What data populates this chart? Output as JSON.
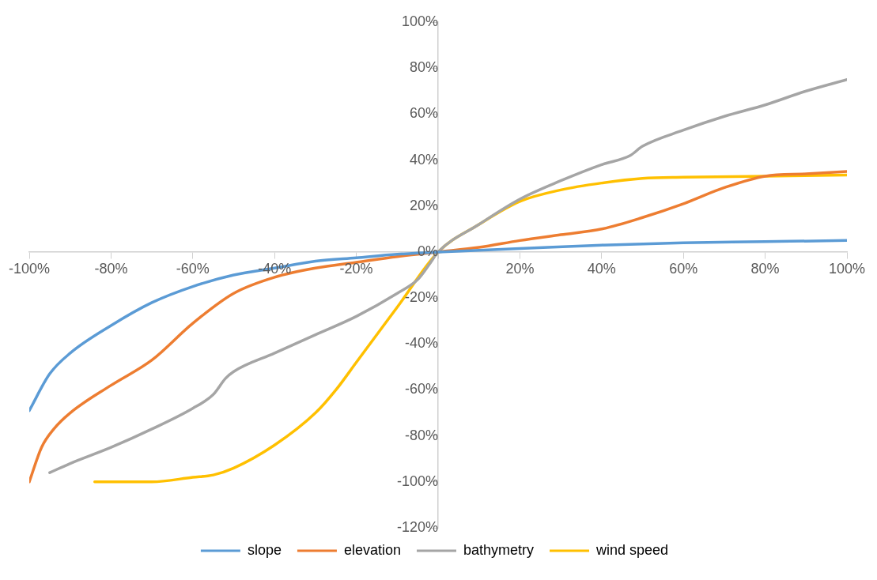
{
  "chart_data": {
    "type": "line",
    "legend": "bottom",
    "marker": "none",
    "xlim": [
      -100,
      100
    ],
    "ylim": [
      -120,
      100
    ],
    "xticks": [
      {
        "value": -100,
        "label": "-100%"
      },
      {
        "value": -80,
        "label": "-80%"
      },
      {
        "value": -60,
        "label": "-60%"
      },
      {
        "value": -40,
        "label": "-40%"
      },
      {
        "value": -20,
        "label": "-20%"
      },
      {
        "value": 0,
        "label": null
      },
      {
        "value": 20,
        "label": "20%"
      },
      {
        "value": 40,
        "label": "40%"
      },
      {
        "value": 60,
        "label": "60%"
      },
      {
        "value": 80,
        "label": "80%"
      },
      {
        "value": 100,
        "label": "100%"
      }
    ],
    "yticks": [
      {
        "value": -120,
        "label": "-120%"
      },
      {
        "value": -100,
        "label": "-100%"
      },
      {
        "value": -80,
        "label": "-80%"
      },
      {
        "value": -60,
        "label": "-60%"
      },
      {
        "value": -40,
        "label": "-40%"
      },
      {
        "value": -20,
        "label": "-20%"
      },
      {
        "value": 0,
        "label": "0%"
      },
      {
        "value": 20,
        "label": "20%"
      },
      {
        "value": 40,
        "label": "40%"
      },
      {
        "value": 60,
        "label": "60%"
      },
      {
        "value": 80,
        "label": "80%"
      },
      {
        "value": 100,
        "label": "100%"
      }
    ],
    "series": [
      {
        "name": "slope",
        "color": "#5b9bd5",
        "x": [
          -100,
          -95,
          -90,
          -80,
          -70,
          -60,
          -50,
          -40,
          -30,
          -20,
          -10,
          0,
          20,
          40,
          60,
          80,
          100
        ],
        "values": [
          -69,
          -53,
          -44,
          -32,
          -22,
          -15,
          -10,
          -7,
          -4,
          -2.5,
          -1,
          0,
          1.5,
          3,
          4,
          4.5,
          5
        ]
      },
      {
        "name": "elevation",
        "color": "#ed7d31",
        "x": [
          -100,
          -97,
          -94,
          -90,
          -80,
          -70,
          -60,
          -50,
          -40,
          -30,
          -20,
          -10,
          0,
          10,
          20,
          30,
          40,
          50,
          60,
          70,
          80,
          90,
          100
        ],
        "values": [
          -100,
          -85,
          -77,
          -70,
          -58,
          -47,
          -31,
          -18,
          -11,
          -7,
          -4.5,
          -2,
          0,
          2,
          5,
          7.5,
          10,
          15,
          21,
          28,
          33,
          34,
          35
        ]
      },
      {
        "name": "bathymetry",
        "color": "#a5a5a5",
        "x": [
          -95,
          -90,
          -80,
          -70,
          -60,
          -55,
          -52,
          -50,
          -40,
          -30,
          -20,
          -10,
          -5,
          -2,
          0,
          10,
          20,
          30,
          40,
          47,
          50,
          60,
          70,
          80,
          90,
          100
        ],
        "values": [
          -96,
          -92,
          -85,
          -77,
          -68,
          -62,
          -55,
          -52,
          -44,
          -36,
          -28,
          -18,
          -12,
          -5,
          0,
          12,
          23,
          31,
          38,
          42,
          46,
          53,
          59,
          64,
          70,
          75
        ]
      },
      {
        "name": "wind speed",
        "color": "#ffc000",
        "x": [
          -84,
          -75,
          -70,
          -60,
          -55,
          -50,
          -40,
          -30,
          -25,
          -20,
          -10,
          0,
          10,
          20,
          30,
          40,
          50,
          60,
          80,
          100
        ],
        "values": [
          -100,
          -100,
          -100,
          -98,
          -97,
          -94,
          -84,
          -70,
          -60,
          -48,
          -24,
          0,
          12,
          22,
          27,
          30,
          32,
          32.5,
          33,
          33.5
        ]
      }
    ]
  }
}
